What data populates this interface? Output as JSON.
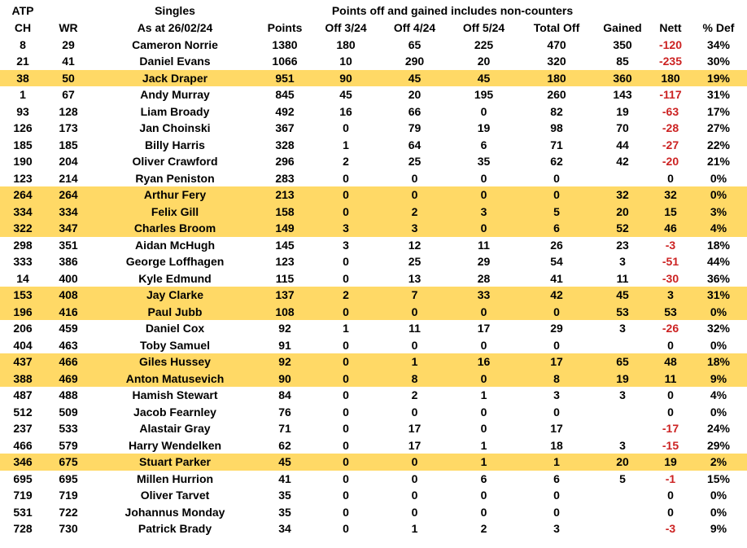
{
  "colors": {
    "row_highlight": "#FFD966",
    "negative_value": "#CC2222"
  },
  "table": {
    "title_row": {
      "atp": "ATP",
      "singles": "Singles",
      "banner": "Points off and gained includes non-counters"
    },
    "columns": [
      "CH",
      "WR",
      "As at 26/02/24",
      "Points",
      "Off 3/24",
      "Off 4/24",
      "Off 5/24",
      "Total Off",
      "Gained",
      "Nett",
      "% Def"
    ],
    "rows": [
      {
        "ch": "8",
        "wr": "29",
        "name": "Cameron Norrie",
        "points": "1380",
        "off_3_24": "180",
        "off_4_24": "65",
        "off_5_24": "225",
        "total_off": "470",
        "gained": "350",
        "nett": "-120",
        "pct_def": "34%",
        "highlight": false
      },
      {
        "ch": "21",
        "wr": "41",
        "name": "Daniel Evans",
        "points": "1066",
        "off_3_24": "10",
        "off_4_24": "290",
        "off_5_24": "20",
        "total_off": "320",
        "gained": "85",
        "nett": "-235",
        "pct_def": "30%",
        "highlight": false
      },
      {
        "ch": "38",
        "wr": "50",
        "name": "Jack Draper",
        "points": "951",
        "off_3_24": "90",
        "off_4_24": "45",
        "off_5_24": "45",
        "total_off": "180",
        "gained": "360",
        "nett": "180",
        "pct_def": "19%",
        "highlight": true
      },
      {
        "ch": "1",
        "wr": "67",
        "name": "Andy Murray",
        "points": "845",
        "off_3_24": "45",
        "off_4_24": "20",
        "off_5_24": "195",
        "total_off": "260",
        "gained": "143",
        "nett": "-117",
        "pct_def": "31%",
        "highlight": false
      },
      {
        "ch": "93",
        "wr": "128",
        "name": "Liam Broady",
        "points": "492",
        "off_3_24": "16",
        "off_4_24": "66",
        "off_5_24": "0",
        "total_off": "82",
        "gained": "19",
        "nett": "-63",
        "pct_def": "17%",
        "highlight": false
      },
      {
        "ch": "126",
        "wr": "173",
        "name": "Jan Choinski",
        "points": "367",
        "off_3_24": "0",
        "off_4_24": "79",
        "off_5_24": "19",
        "total_off": "98",
        "gained": "70",
        "nett": "-28",
        "pct_def": "27%",
        "highlight": false
      },
      {
        "ch": "185",
        "wr": "185",
        "name": "Billy Harris",
        "points": "328",
        "off_3_24": "1",
        "off_4_24": "64",
        "off_5_24": "6",
        "total_off": "71",
        "gained": "44",
        "nett": "-27",
        "pct_def": "22%",
        "highlight": false
      },
      {
        "ch": "190",
        "wr": "204",
        "name": "Oliver Crawford",
        "points": "296",
        "off_3_24": "2",
        "off_4_24": "25",
        "off_5_24": "35",
        "total_off": "62",
        "gained": "42",
        "nett": "-20",
        "pct_def": "21%",
        "highlight": false
      },
      {
        "ch": "123",
        "wr": "214",
        "name": "Ryan Peniston",
        "points": "283",
        "off_3_24": "0",
        "off_4_24": "0",
        "off_5_24": "0",
        "total_off": "0",
        "gained": "",
        "nett": "0",
        "pct_def": "0%",
        "highlight": false
      },
      {
        "ch": "264",
        "wr": "264",
        "name": "Arthur Fery",
        "points": "213",
        "off_3_24": "0",
        "off_4_24": "0",
        "off_5_24": "0",
        "total_off": "0",
        "gained": "32",
        "nett": "32",
        "pct_def": "0%",
        "highlight": true
      },
      {
        "ch": "334",
        "wr": "334",
        "name": "Felix Gill",
        "points": "158",
        "off_3_24": "0",
        "off_4_24": "2",
        "off_5_24": "3",
        "total_off": "5",
        "gained": "20",
        "nett": "15",
        "pct_def": "3%",
        "highlight": true
      },
      {
        "ch": "322",
        "wr": "347",
        "name": "Charles Broom",
        "points": "149",
        "off_3_24": "3",
        "off_4_24": "3",
        "off_5_24": "0",
        "total_off": "6",
        "gained": "52",
        "nett": "46",
        "pct_def": "4%",
        "highlight": true
      },
      {
        "ch": "298",
        "wr": "351",
        "name": "Aidan McHugh",
        "points": "145",
        "off_3_24": "3",
        "off_4_24": "12",
        "off_5_24": "11",
        "total_off": "26",
        "gained": "23",
        "nett": "-3",
        "pct_def": "18%",
        "highlight": false
      },
      {
        "ch": "333",
        "wr": "386",
        "name": "George Loffhagen",
        "points": "123",
        "off_3_24": "0",
        "off_4_24": "25",
        "off_5_24": "29",
        "total_off": "54",
        "gained": "3",
        "nett": "-51",
        "pct_def": "44%",
        "highlight": false
      },
      {
        "ch": "14",
        "wr": "400",
        "name": "Kyle Edmund",
        "points": "115",
        "off_3_24": "0",
        "off_4_24": "13",
        "off_5_24": "28",
        "total_off": "41",
        "gained": "11",
        "nett": "-30",
        "pct_def": "36%",
        "highlight": false
      },
      {
        "ch": "153",
        "wr": "408",
        "name": "Jay Clarke",
        "points": "137",
        "off_3_24": "2",
        "off_4_24": "7",
        "off_5_24": "33",
        "total_off": "42",
        "gained": "45",
        "nett": "3",
        "pct_def": "31%",
        "highlight": true
      },
      {
        "ch": "196",
        "wr": "416",
        "name": "Paul Jubb",
        "points": "108",
        "off_3_24": "0",
        "off_4_24": "0",
        "off_5_24": "0",
        "total_off": "0",
        "gained": "53",
        "nett": "53",
        "pct_def": "0%",
        "highlight": true
      },
      {
        "ch": "206",
        "wr": "459",
        "name": "Daniel Cox",
        "points": "92",
        "off_3_24": "1",
        "off_4_24": "11",
        "off_5_24": "17",
        "total_off": "29",
        "gained": "3",
        "nett": "-26",
        "pct_def": "32%",
        "highlight": false
      },
      {
        "ch": "404",
        "wr": "463",
        "name": "Toby Samuel",
        "points": "91",
        "off_3_24": "0",
        "off_4_24": "0",
        "off_5_24": "0",
        "total_off": "0",
        "gained": "",
        "nett": "0",
        "pct_def": "0%",
        "highlight": false
      },
      {
        "ch": "437",
        "wr": "466",
        "name": "Giles Hussey",
        "points": "92",
        "off_3_24": "0",
        "off_4_24": "1",
        "off_5_24": "16",
        "total_off": "17",
        "gained": "65",
        "nett": "48",
        "pct_def": "18%",
        "highlight": true
      },
      {
        "ch": "388",
        "wr": "469",
        "name": "Anton Matusevich",
        "points": "90",
        "off_3_24": "0",
        "off_4_24": "8",
        "off_5_24": "0",
        "total_off": "8",
        "gained": "19",
        "nett": "11",
        "pct_def": "9%",
        "highlight": true
      },
      {
        "ch": "487",
        "wr": "488",
        "name": "Hamish Stewart",
        "points": "84",
        "off_3_24": "0",
        "off_4_24": "2",
        "off_5_24": "1",
        "total_off": "3",
        "gained": "3",
        "nett": "0",
        "pct_def": "4%",
        "highlight": false
      },
      {
        "ch": "512",
        "wr": "509",
        "name": "Jacob Fearnley",
        "points": "76",
        "off_3_24": "0",
        "off_4_24": "0",
        "off_5_24": "0",
        "total_off": "0",
        "gained": "",
        "nett": "0",
        "pct_def": "0%",
        "highlight": false
      },
      {
        "ch": "237",
        "wr": "533",
        "name": "Alastair Gray",
        "points": "71",
        "off_3_24": "0",
        "off_4_24": "17",
        "off_5_24": "0",
        "total_off": "17",
        "gained": "",
        "nett": "-17",
        "pct_def": "24%",
        "highlight": false
      },
      {
        "ch": "466",
        "wr": "579",
        "name": "Harry Wendelken",
        "points": "62",
        "off_3_24": "0",
        "off_4_24": "17",
        "off_5_24": "1",
        "total_off": "18",
        "gained": "3",
        "nett": "-15",
        "pct_def": "29%",
        "highlight": false
      },
      {
        "ch": "346",
        "wr": "675",
        "name": "Stuart Parker",
        "points": "45",
        "off_3_24": "0",
        "off_4_24": "0",
        "off_5_24": "1",
        "total_off": "1",
        "gained": "20",
        "nett": "19",
        "pct_def": "2%",
        "highlight": true
      },
      {
        "ch": "695",
        "wr": "695",
        "name": "Millen Hurrion",
        "points": "41",
        "off_3_24": "0",
        "off_4_24": "0",
        "off_5_24": "6",
        "total_off": "6",
        "gained": "5",
        "nett": "-1",
        "pct_def": "15%",
        "highlight": false
      },
      {
        "ch": "719",
        "wr": "719",
        "name": "Oliver Tarvet",
        "points": "35",
        "off_3_24": "0",
        "off_4_24": "0",
        "off_5_24": "0",
        "total_off": "0",
        "gained": "",
        "nett": "0",
        "pct_def": "0%",
        "highlight": false
      },
      {
        "ch": "531",
        "wr": "722",
        "name": "Johannus Monday",
        "points": "35",
        "off_3_24": "0",
        "off_4_24": "0",
        "off_5_24": "0",
        "total_off": "0",
        "gained": "",
        "nett": "0",
        "pct_def": "0%",
        "highlight": false
      },
      {
        "ch": "728",
        "wr": "730",
        "name": "Patrick Brady",
        "points": "34",
        "off_3_24": "0",
        "off_4_24": "1",
        "off_5_24": "2",
        "total_off": "3",
        "gained": "",
        "nett": "-3",
        "pct_def": "9%",
        "highlight": false
      }
    ]
  }
}
